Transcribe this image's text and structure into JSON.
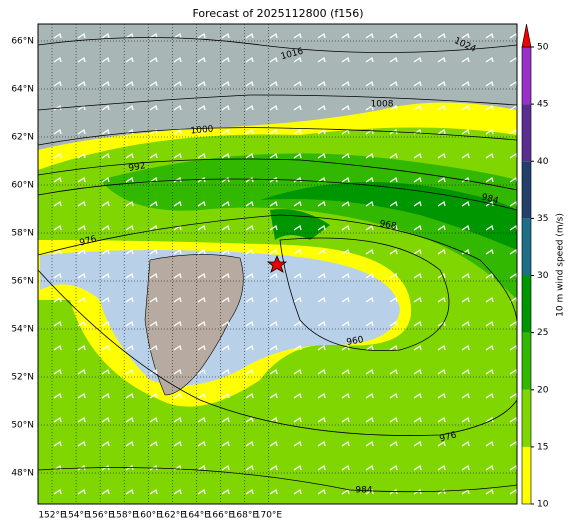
{
  "title": "Forecast of 2025112800 (f156)",
  "lon_labels": [
    "152°E",
    "154°E",
    "156°E",
    "158°E",
    "160°E",
    "162°E",
    "164°E",
    "166°E",
    "168°E",
    "170°E"
  ],
  "lat_labels": [
    "66°N",
    "64°N",
    "62°N",
    "60°N",
    "58°N",
    "56°N",
    "54°N",
    "52°N",
    "50°N",
    "48°N"
  ],
  "isobar_labels": [
    "1016",
    "1024",
    "1008",
    "1000",
    "992",
    "984",
    "976",
    "968",
    "960",
    "976",
    "984"
  ],
  "colorbar": {
    "label": "10 m wind speed (m/s)",
    "ticks": [
      10,
      15,
      20,
      25,
      30,
      35,
      40,
      45,
      50
    ],
    "colors": [
      "#ffff00",
      "#7fd600",
      "#33b800",
      "#009600",
      "#1d6e86",
      "#22406a",
      "#5a2d91",
      "#9b30c8"
    ],
    "extend_color": "#ee0000"
  }
}
